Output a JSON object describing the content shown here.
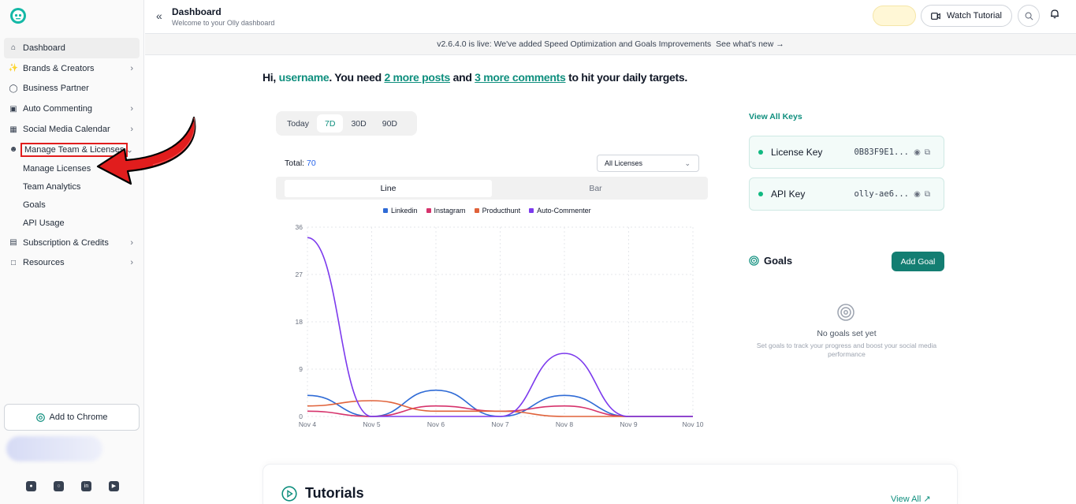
{
  "sidebar": {
    "items": [
      {
        "label": "Dashboard",
        "icon": "home-icon",
        "chevron": false
      },
      {
        "label": "Brands & Creators",
        "icon": "wand-icon",
        "chevron": true
      },
      {
        "label": "Business Partner",
        "icon": "chat-icon",
        "chevron": false
      },
      {
        "label": "Auto Commenting",
        "icon": "bot-icon",
        "chevron": true
      },
      {
        "label": "Social Media Calendar",
        "icon": "calendar-icon",
        "chevron": true
      },
      {
        "label": "Manage Team & Licenses",
        "icon": "users-icon",
        "chevron": true
      }
    ],
    "sub_items": [
      "Manage Licenses",
      "Team Analytics",
      "Goals",
      "API Usage"
    ],
    "items_after": [
      {
        "label": "Subscription & Credits",
        "icon": "card-icon",
        "chevron": true
      },
      {
        "label": "Resources",
        "icon": "book-icon",
        "chevron": true
      }
    ],
    "add_chrome": "Add to Chrome"
  },
  "header": {
    "title": "Dashboard",
    "subtitle": "Welcome to your Olly dashboard",
    "watch_tutorial": "Watch Tutorial"
  },
  "banner": {
    "text": "v2.6.4.0 is live: We've added Speed Optimization and Goals Improvements",
    "link": "See what's new →"
  },
  "greeting": {
    "hi": "Hi,",
    "username": "username",
    "part1": ". You need",
    "posts": "2 more posts",
    "and": "and",
    "comments": "3 more comments",
    "part2": "to hit your daily targets."
  },
  "range_tabs": [
    "Today",
    "7D",
    "30D",
    "90D"
  ],
  "total_label": "Total:",
  "total_value": "70",
  "license_select": "All Licenses",
  "chart_tabs": [
    "Line",
    "Bar"
  ],
  "colors": {
    "linkedin": "#2f6bd6",
    "instagram": "#d6336c",
    "producthunt": "#e0623a",
    "autocommenter": "#7c3aed",
    "accent": "#0f8f7e"
  },
  "chart_data": {
    "type": "line",
    "categories": [
      "Nov 4",
      "Nov 5",
      "Nov 6",
      "Nov 7",
      "Nov 8",
      "Nov 9",
      "Nov 10"
    ],
    "ylim": [
      0,
      36
    ],
    "yticks": [
      "36",
      "27",
      "18",
      "9",
      "0"
    ],
    "series": [
      {
        "name": "Linkedin",
        "values": [
          4,
          0,
          5,
          0,
          4,
          0,
          0
        ]
      },
      {
        "name": "Instagram",
        "values": [
          1,
          0,
          2,
          1,
          2,
          0,
          0
        ]
      },
      {
        "name": "Producthunt",
        "values": [
          2,
          3,
          1,
          1,
          0,
          0,
          0
        ]
      },
      {
        "name": "Auto-Commenter",
        "values": [
          34,
          0,
          0,
          0,
          12,
          0,
          0
        ]
      }
    ],
    "grid": true,
    "legend": "top"
  },
  "keys": {
    "view_all": "View All Keys",
    "items": [
      {
        "label": "License Key",
        "value": "0B83F9E1..."
      },
      {
        "label": "API Key",
        "value": "olly-ae6..."
      }
    ]
  },
  "goals": {
    "title": "Goals",
    "add": "Add Goal",
    "empty": "No goals set yet",
    "empty_sub": "Set goals to track your progress and boost your social media performance"
  },
  "tutorials": {
    "title": "Tutorials",
    "view_all": "View All"
  }
}
